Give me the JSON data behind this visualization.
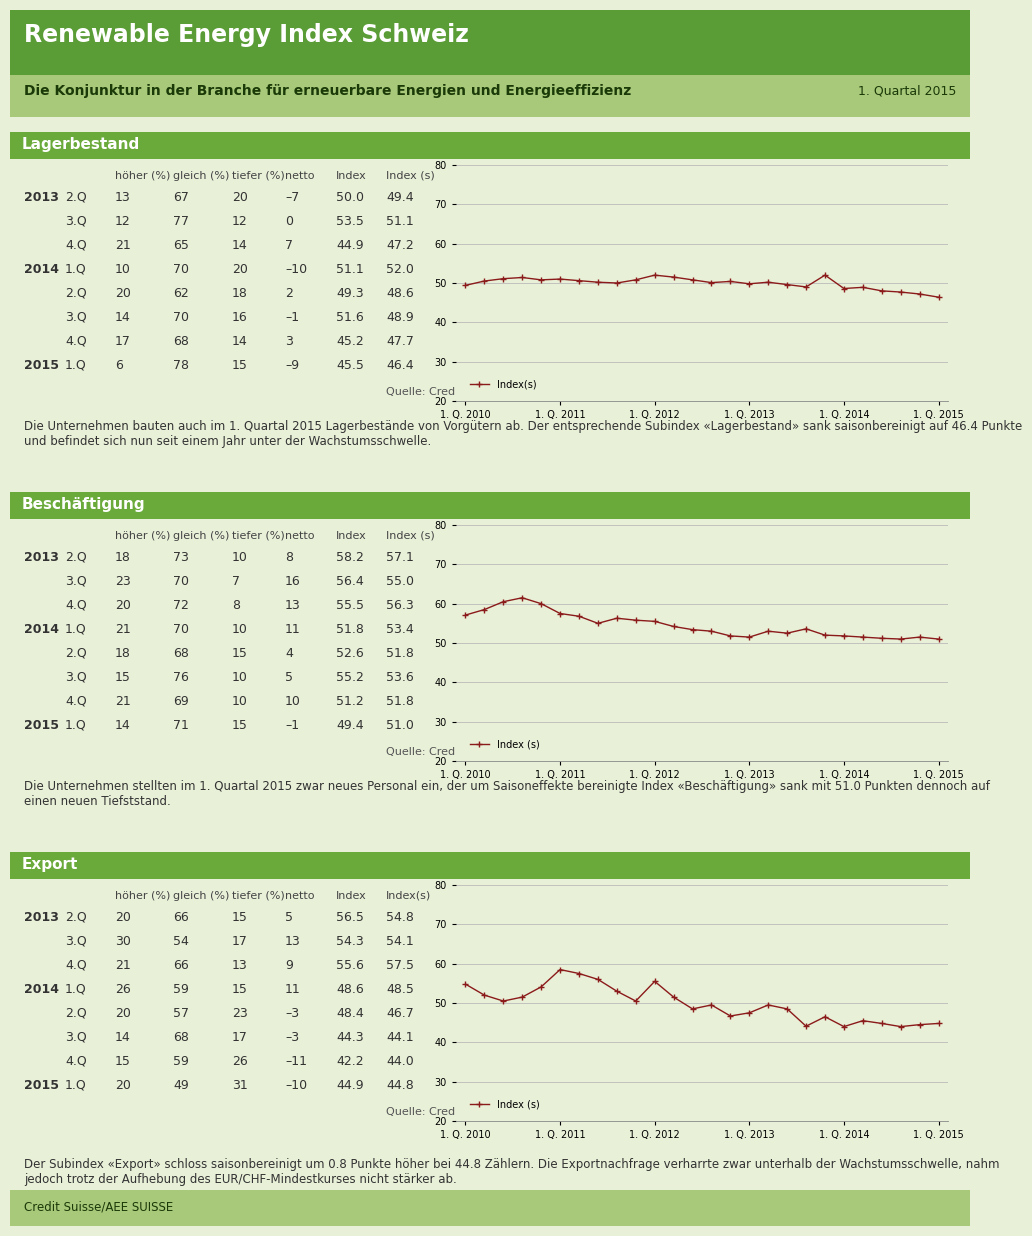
{
  "title": "Renewable Energy Index Schweiz",
  "subtitle": "Die Konjunktur in der Branche für erneuerbare Energien und Energieeffizienz",
  "quarter": "1. Quartal 2015",
  "header_green_dark": "#5a9c36",
  "header_green_light": "#a8c87a",
  "section_green": "#6aaa3a",
  "bg_light": "#e8f0d8",
  "text_dark": "#333333",
  "line_color": "#8b1a1a",
  "sections": [
    {
      "name": "Lagerbestand",
      "col_headers": [
        "höher (%)",
        "gleich (%)",
        "tiefer (%)",
        "netto",
        "Index",
        "Index (s)"
      ],
      "rows": [
        [
          "2013",
          "2.Q",
          "13",
          "67",
          "20",
          "–7",
          "50.0",
          "49.4"
        ],
        [
          "",
          "3.Q",
          "12",
          "77",
          "12",
          "0",
          "53.5",
          "51.1"
        ],
        [
          "",
          "4.Q",
          "21",
          "65",
          "14",
          "7",
          "44.9",
          "47.2"
        ],
        [
          "2014",
          "1.Q",
          "10",
          "70",
          "20",
          "–10",
          "51.1",
          "52.0"
        ],
        [
          "",
          "2.Q",
          "20",
          "62",
          "18",
          "2",
          "49.3",
          "48.6"
        ],
        [
          "",
          "3.Q",
          "14",
          "70",
          "16",
          "–1",
          "51.6",
          "48.9"
        ],
        [
          "",
          "4.Q",
          "17",
          "68",
          "14",
          "3",
          "45.2",
          "47.7"
        ],
        [
          "2015",
          "1.Q",
          "6",
          "78",
          "15",
          "–9",
          "45.5",
          "46.4"
        ]
      ],
      "source": "Quelle: Credit Suisse",
      "description": "Die Unternehmen bauten auch im 1. Quartal 2015 Lagerbestände von Vorgütern ab. Der entsprechende Subindex «Lagerbestand» sank saisonbereinigt auf 46.4 Punkte\nund befindet sich nun seit einem Jahr unter der Wachstumsschwelle.",
      "chart_data": [
        49.4,
        50.5,
        51.1,
        51.4,
        50.8,
        51.0,
        50.6,
        50.2,
        50.0,
        50.8,
        52.0,
        51.5,
        50.8,
        50.1,
        50.4,
        49.8,
        50.2,
        49.6,
        49.0,
        52.0,
        48.6,
        48.9,
        48.0,
        47.7,
        47.2,
        46.4
      ],
      "legend_label": "Index(s)"
    },
    {
      "name": "Beschäftigung",
      "col_headers": [
        "höher (%)",
        "gleich (%)",
        "tiefer (%)",
        "netto",
        "Index",
        "Index (s)"
      ],
      "rows": [
        [
          "2013",
          "2.Q",
          "18",
          "73",
          "10",
          "8",
          "58.2",
          "57.1"
        ],
        [
          "",
          "3.Q",
          "23",
          "70",
          "7",
          "16",
          "56.4",
          "55.0"
        ],
        [
          "",
          "4.Q",
          "20",
          "72",
          "8",
          "13",
          "55.5",
          "56.3"
        ],
        [
          "2014",
          "1.Q",
          "21",
          "70",
          "10",
          "11",
          "51.8",
          "53.4"
        ],
        [
          "",
          "2.Q",
          "18",
          "68",
          "15",
          "4",
          "52.6",
          "51.8"
        ],
        [
          "",
          "3.Q",
          "15",
          "76",
          "10",
          "5",
          "55.2",
          "53.6"
        ],
        [
          "",
          "4.Q",
          "21",
          "69",
          "10",
          "10",
          "51.2",
          "51.8"
        ],
        [
          "2015",
          "1.Q",
          "14",
          "71",
          "15",
          "–1",
          "49.4",
          "51.0"
        ]
      ],
      "source": "Quelle: Credit Suisse",
      "description": "Die Unternehmen stellten im 1. Quartal 2015 zwar neues Personal ein, der um Saisoneffekte bereinigte Index «Beschäftigung» sank mit 51.0 Punkten dennoch auf\neinen neuen Tiefststand.",
      "chart_data": [
        57.1,
        58.5,
        60.5,
        61.5,
        60.0,
        57.5,
        56.8,
        55.0,
        56.3,
        55.8,
        55.5,
        54.2,
        53.4,
        53.0,
        51.8,
        51.5,
        53.0,
        52.5,
        53.6,
        52.0,
        51.8,
        51.5,
        51.2,
        51.0,
        51.5,
        51.0
      ],
      "legend_label": "Index (s)"
    },
    {
      "name": "Export",
      "col_headers": [
        "höher (%)",
        "gleich (%)",
        "tiefer (%)",
        "netto",
        "Index",
        "Index(s)"
      ],
      "rows": [
        [
          "2013",
          "2.Q",
          "20",
          "66",
          "15",
          "5",
          "56.5",
          "54.8"
        ],
        [
          "",
          "3.Q",
          "30",
          "54",
          "17",
          "13",
          "54.3",
          "54.1"
        ],
        [
          "",
          "4.Q",
          "21",
          "66",
          "13",
          "9",
          "55.6",
          "57.5"
        ],
        [
          "2014",
          "1.Q",
          "26",
          "59",
          "15",
          "11",
          "48.6",
          "48.5"
        ],
        [
          "",
          "2.Q",
          "20",
          "57",
          "23",
          "–3",
          "48.4",
          "46.7"
        ],
        [
          "",
          "3.Q",
          "14",
          "68",
          "17",
          "–3",
          "44.3",
          "44.1"
        ],
        [
          "",
          "4.Q",
          "15",
          "59",
          "26",
          "–11",
          "42.2",
          "44.0"
        ],
        [
          "2015",
          "1.Q",
          "20",
          "49",
          "31",
          "–10",
          "44.9",
          "44.8"
        ]
      ],
      "source": "Quelle: Credit Suisse",
      "description": "Der Subindex «Export» schloss saisonbereinigt um 0.8 Punkte höher bei 44.8 Zählern. Die Exportnachfrage verharrte zwar unterhalb der Wachstumsschwelle, nahm\njedoch trotz der Aufhebung des EUR/CHF-Mindestkurses nicht stärker ab.",
      "chart_data": [
        54.8,
        52.0,
        50.5,
        51.5,
        54.1,
        58.5,
        57.5,
        56.0,
        53.0,
        50.5,
        55.5,
        51.5,
        48.5,
        49.5,
        46.7,
        47.5,
        49.5,
        48.5,
        44.1,
        46.5,
        44.0,
        45.5,
        44.8,
        44.0,
        44.5,
        44.8
      ],
      "legend_label": "Index (s)"
    }
  ],
  "footer": "Credit Suisse/AEE SUISSE",
  "x_labels": [
    "1. Q. 2010",
    "1. Q. 2011",
    "1. Q. 2012",
    "1. Q. 2013",
    "1. Q. 2014",
    "1. Q. 2015"
  ]
}
